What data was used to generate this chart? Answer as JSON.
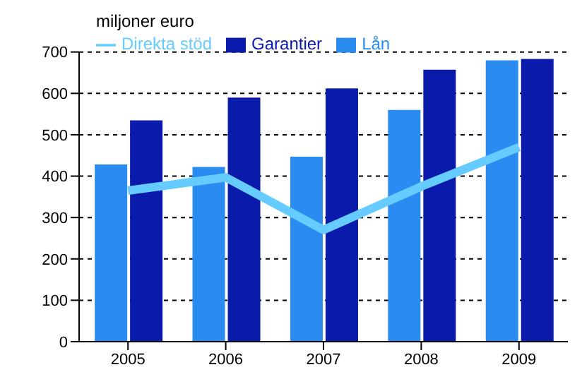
{
  "chart_data": {
    "type": "bar",
    "ylabel": "miljoner euro",
    "categories": [
      "2005",
      "2006",
      "2007",
      "2008",
      "2009"
    ],
    "series": [
      {
        "name": "Direkta stöd",
        "type": "line",
        "color": "#66ccff",
        "values": [
          365,
          397,
          270,
          375,
          470
        ]
      },
      {
        "name": "Lån",
        "color": "#2a8cf0",
        "values": [
          428,
          422,
          447,
          560,
          680
        ]
      },
      {
        "name": "Garantier",
        "color": "#0a1aaa",
        "values": [
          535,
          590,
          612,
          657,
          683
        ]
      }
    ],
    "ylim": [
      0,
      700
    ],
    "yticks": [
      0,
      100,
      200,
      300,
      400,
      500,
      600,
      700
    ],
    "grid": "y",
    "legend": "top left",
    "marker": "none",
    "line_style": "solid"
  }
}
